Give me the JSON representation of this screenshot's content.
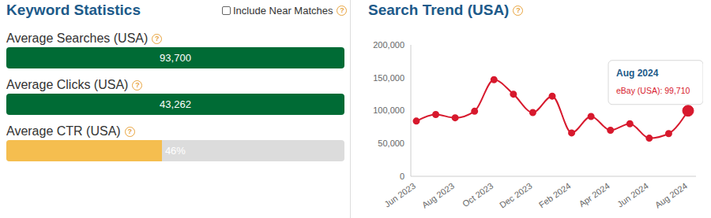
{
  "keyword_statistics": {
    "title": "Keyword Statistics",
    "help_icon": "?",
    "checkbox_label": "Include Near Matches",
    "metrics": [
      {
        "label": "Average Searches (USA)",
        "value": 93700
      },
      {
        "label": "Average Clicks (USA)",
        "value": 43262
      },
      {
        "label": "Average CTR (USA)",
        "value": 46,
        "value_label": "46%"
      }
    ]
  },
  "chart_data": {
    "type": "line",
    "title": "Search Trend (USA)",
    "categories": [
      "Jun 2023",
      null,
      "Aug 2023",
      null,
      "Oct 2023",
      null,
      "Dec 2023",
      null,
      "Feb 2024",
      null,
      "Apr 2024",
      null,
      "Jun 2024",
      null,
      "Aug 2024"
    ],
    "series": [
      {
        "name": "eBay (USA)",
        "color": "#d7192d",
        "marker": "circle",
        "values": [
          84000,
          94000,
          89000,
          99000,
          147000,
          125000,
          97000,
          122000,
          66000,
          91000,
          70000,
          80000,
          58000,
          65000,
          99710
        ]
      }
    ],
    "ylim": [
      0,
      200000
    ],
    "yticks": [
      0,
      {
        "value": 50000,
        "label": "50,000"
      },
      {
        "value": 100000,
        "label": "100,000"
      },
      {
        "value": 150000,
        "label": "150,000"
      },
      {
        "value": 200000,
        "label": "200,000"
      }
    ],
    "grid": false,
    "annotations": [
      {
        "category": "Aug 2024",
        "label": "eBay (USA): 99,710"
      }
    ]
  }
}
